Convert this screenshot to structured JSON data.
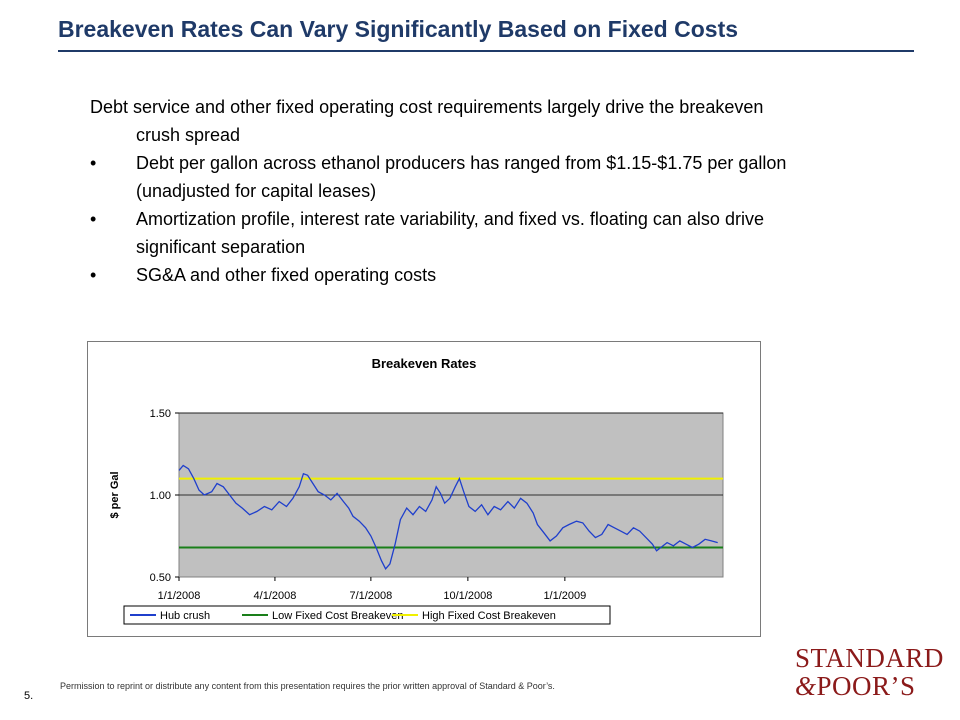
{
  "slide": {
    "title": "Breakeven Rates Can Vary Significantly Based on Fixed Costs",
    "intro": "Debt service and other fixed operating cost requirements largely drive the breakeven crush spread",
    "bullets": [
      "Debt per gallon across ethanol producers has ranged from $1.15-$1.75 per gallon (unadjusted for capital leases)",
      "Amortization profile, interest rate variability, and fixed vs. floating can also drive significant separation",
      "SG&A and other fixed operating costs"
    ],
    "bullet_char": "•",
    "page_number": "5.",
    "permission": "Permission to reprint or distribute any content from this presentation requires the prior written approval of Standard & Poor’s.",
    "logo": {
      "line1": "STANDARD",
      "line2_amp": "&",
      "line2_rest": "POOR’S"
    }
  },
  "colors": {
    "title": "#1f3a68",
    "logo": "#8b1a1a",
    "plot_bg": "#c0c0c0"
  },
  "chart_data": {
    "type": "line",
    "title": "Breakeven Rates",
    "xlabel": "",
    "ylabel": "$ per Gal",
    "ylim": [
      0.5,
      1.5
    ],
    "yticks": [
      0.5,
      1.0,
      1.5
    ],
    "ytick_labels": [
      "0.50",
      "1.00",
      "1.50"
    ],
    "xlim": [
      "2008-01-01",
      "2009-05-31"
    ],
    "xticks": [
      "2008-01-01",
      "2008-04-01",
      "2008-07-01",
      "2008-10-01",
      "2009-01-01"
    ],
    "xtick_labels": [
      "1/1/2008",
      "4/1/2008",
      "7/1/2008",
      "10/1/2008",
      "1/1/2009"
    ],
    "grid": true,
    "legend_position": "bottom",
    "series": [
      {
        "name": "Hub crush",
        "color": "#1f3fcc",
        "points": [
          [
            "2008-01-01",
            1.15
          ],
          [
            "2008-01-05",
            1.18
          ],
          [
            "2008-01-10",
            1.16
          ],
          [
            "2008-01-15",
            1.1
          ],
          [
            "2008-01-20",
            1.03
          ],
          [
            "2008-01-25",
            1.0
          ],
          [
            "2008-02-01",
            1.02
          ],
          [
            "2008-02-06",
            1.07
          ],
          [
            "2008-02-12",
            1.05
          ],
          [
            "2008-02-18",
            1.0
          ],
          [
            "2008-02-24",
            0.95
          ],
          [
            "2008-03-01",
            0.92
          ],
          [
            "2008-03-08",
            0.88
          ],
          [
            "2008-03-15",
            0.9
          ],
          [
            "2008-03-22",
            0.93
          ],
          [
            "2008-03-29",
            0.91
          ],
          [
            "2008-04-05",
            0.96
          ],
          [
            "2008-04-12",
            0.93
          ],
          [
            "2008-04-18",
            0.98
          ],
          [
            "2008-04-24",
            1.05
          ],
          [
            "2008-04-28",
            1.13
          ],
          [
            "2008-05-02",
            1.12
          ],
          [
            "2008-05-07",
            1.07
          ],
          [
            "2008-05-12",
            1.02
          ],
          [
            "2008-05-18",
            1.0
          ],
          [
            "2008-05-24",
            0.97
          ],
          [
            "2008-05-30",
            1.01
          ],
          [
            "2008-06-05",
            0.96
          ],
          [
            "2008-06-10",
            0.92
          ],
          [
            "2008-06-14",
            0.87
          ],
          [
            "2008-06-20",
            0.84
          ],
          [
            "2008-06-26",
            0.8
          ],
          [
            "2008-07-01",
            0.75
          ],
          [
            "2008-07-06",
            0.68
          ],
          [
            "2008-07-11",
            0.6
          ],
          [
            "2008-07-15",
            0.55
          ],
          [
            "2008-07-19",
            0.58
          ],
          [
            "2008-07-24",
            0.7
          ],
          [
            "2008-07-29",
            0.85
          ],
          [
            "2008-08-04",
            0.92
          ],
          [
            "2008-08-10",
            0.88
          ],
          [
            "2008-08-16",
            0.93
          ],
          [
            "2008-08-22",
            0.9
          ],
          [
            "2008-08-28",
            0.97
          ],
          [
            "2008-09-01",
            1.05
          ],
          [
            "2008-09-05",
            1.01
          ],
          [
            "2008-09-09",
            0.95
          ],
          [
            "2008-09-14",
            0.98
          ],
          [
            "2008-09-19",
            1.05
          ],
          [
            "2008-09-23",
            1.1
          ],
          [
            "2008-09-27",
            1.02
          ],
          [
            "2008-10-02",
            0.93
          ],
          [
            "2008-10-08",
            0.9
          ],
          [
            "2008-10-14",
            0.94
          ],
          [
            "2008-10-20",
            0.88
          ],
          [
            "2008-10-26",
            0.93
          ],
          [
            "2008-11-01",
            0.91
          ],
          [
            "2008-11-08",
            0.96
          ],
          [
            "2008-11-14",
            0.92
          ],
          [
            "2008-11-20",
            0.98
          ],
          [
            "2008-11-26",
            0.95
          ],
          [
            "2008-12-02",
            0.89
          ],
          [
            "2008-12-06",
            0.82
          ],
          [
            "2008-12-12",
            0.77
          ],
          [
            "2008-12-18",
            0.72
          ],
          [
            "2008-12-24",
            0.75
          ],
          [
            "2008-12-30",
            0.8
          ],
          [
            "2009-01-05",
            0.82
          ],
          [
            "2009-01-12",
            0.84
          ],
          [
            "2009-01-18",
            0.83
          ],
          [
            "2009-01-24",
            0.78
          ],
          [
            "2009-01-30",
            0.74
          ],
          [
            "2009-02-05",
            0.76
          ],
          [
            "2009-02-11",
            0.82
          ],
          [
            "2009-02-17",
            0.8
          ],
          [
            "2009-02-23",
            0.78
          ],
          [
            "2009-03-01",
            0.76
          ],
          [
            "2009-03-07",
            0.8
          ],
          [
            "2009-03-13",
            0.78
          ],
          [
            "2009-03-19",
            0.74
          ],
          [
            "2009-03-25",
            0.7
          ],
          [
            "2009-03-29",
            0.66
          ],
          [
            "2009-04-02",
            0.68
          ],
          [
            "2009-04-08",
            0.71
          ],
          [
            "2009-04-14",
            0.69
          ],
          [
            "2009-04-20",
            0.72
          ],
          [
            "2009-04-26",
            0.7
          ],
          [
            "2009-05-02",
            0.68
          ],
          [
            "2009-05-08",
            0.7
          ],
          [
            "2009-05-14",
            0.73
          ],
          [
            "2009-05-20",
            0.72
          ],
          [
            "2009-05-26",
            0.71
          ]
        ]
      },
      {
        "name": "Low Fixed Cost Breakeven",
        "color": "#1a7f1a",
        "value": 0.68
      },
      {
        "name": "High Fixed Cost Breakeven",
        "color": "#f0f000",
        "value": 1.1
      }
    ]
  }
}
